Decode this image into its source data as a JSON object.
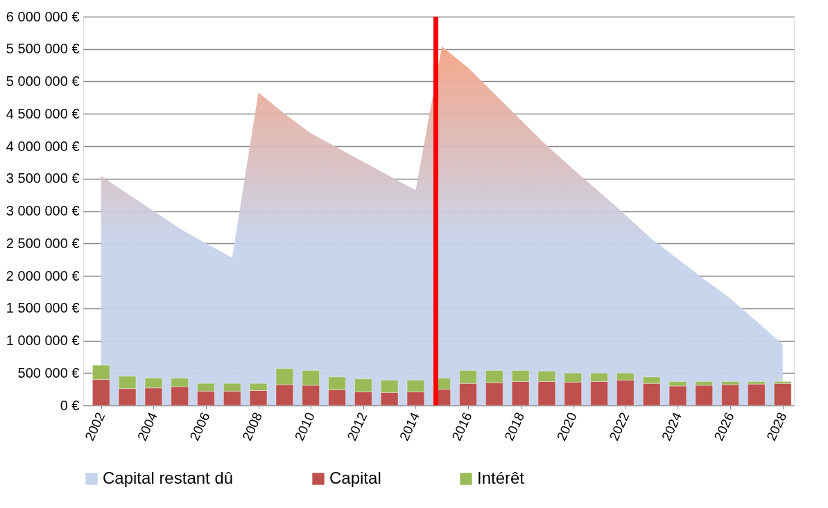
{
  "chart_data": {
    "type": "bar",
    "stacked": true,
    "x": [
      2002,
      2003,
      2004,
      2005,
      2006,
      2007,
      2008,
      2009,
      2010,
      2011,
      2012,
      2013,
      2014,
      2015,
      2016,
      2017,
      2018,
      2019,
      2020,
      2021,
      2022,
      2023,
      2024,
      2025,
      2026,
      2027,
      2028
    ],
    "xlim": [
      2001.45,
      2028.3
    ],
    "xticks": [
      {
        "value": 2002,
        "label": "2002"
      },
      {
        "value": 2004,
        "label": "2004"
      },
      {
        "value": 2006,
        "label": "2006"
      },
      {
        "value": 2008,
        "label": "2008"
      },
      {
        "value": 2010,
        "label": "2010"
      },
      {
        "value": 2012,
        "label": "2012"
      },
      {
        "value": 2014,
        "label": "2014"
      },
      {
        "value": 2016,
        "label": "2016"
      },
      {
        "value": 2018,
        "label": "2018"
      },
      {
        "value": 2020,
        "label": "2020"
      },
      {
        "value": 2022,
        "label": "2022"
      },
      {
        "value": 2024,
        "label": "2024"
      },
      {
        "value": 2026,
        "label": "2026"
      },
      {
        "value": 2028,
        "label": "2028"
      }
    ],
    "ylim": [
      0,
      6000000
    ],
    "yticks": [
      {
        "value": 0,
        "label": "0 €"
      },
      {
        "value": 500000,
        "label": "500 000 €"
      },
      {
        "value": 1000000,
        "label": "1 000 000 €"
      },
      {
        "value": 1500000,
        "label": "1 500 000 €"
      },
      {
        "value": 2000000,
        "label": "2 000 000 €"
      },
      {
        "value": 2500000,
        "label": "2 500 000 €"
      },
      {
        "value": 3000000,
        "label": "3 000 000 €"
      },
      {
        "value": 3500000,
        "label": "3 500 000 €"
      },
      {
        "value": 4000000,
        "label": "4 000 000 €"
      },
      {
        "value": 4500000,
        "label": "4 500 000 €"
      },
      {
        "value": 5000000,
        "label": "5 000 000 €"
      },
      {
        "value": 5500000,
        "label": "5 500 000 €"
      },
      {
        "value": 6000000,
        "label": "6 000 000 €"
      }
    ],
    "grid": "y",
    "legend": "bottom",
    "series": [
      {
        "name": "Capital restant dû",
        "type": "area",
        "color": "#c6d3ec",
        "values": [
          3540000,
          3270000,
          3000000,
          2730000,
          2500000,
          2280000,
          4830000,
          4500000,
          4200000,
          3980000,
          3760000,
          3540000,
          3320000,
          5540000,
          5210000,
          4810000,
          4410000,
          4010000,
          3650000,
          3300000,
          2940000,
          2570000,
          2260000,
          1950000,
          1650000,
          1300000,
          940000
        ]
      },
      {
        "name": "Capital",
        "color": "#c0504d",
        "values": [
          400000,
          260000,
          270000,
          290000,
          220000,
          220000,
          230000,
          320000,
          310000,
          240000,
          210000,
          200000,
          210000,
          250000,
          340000,
          350000,
          370000,
          370000,
          360000,
          370000,
          390000,
          340000,
          300000,
          310000,
          320000,
          330000,
          340000
        ]
      },
      {
        "name": "Intérêt",
        "color": "#9bbb59",
        "values": [
          220000,
          190000,
          150000,
          130000,
          120000,
          120000,
          110000,
          250000,
          230000,
          200000,
          200000,
          190000,
          180000,
          170000,
          200000,
          190000,
          170000,
          160000,
          140000,
          130000,
          110000,
          100000,
          70000,
          60000,
          50000,
          40000,
          30000
        ]
      }
    ],
    "ref_lines": [
      {
        "axis": "x",
        "value": 2014.77,
        "color": "#ff0000"
      }
    ]
  }
}
